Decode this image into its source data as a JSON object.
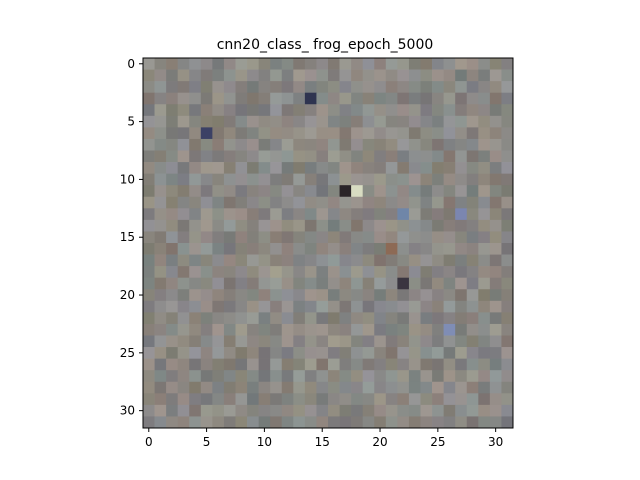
{
  "chart_data": {
    "type": "heatmap",
    "title": "cnn20_class_ frog_epoch_5000",
    "xlabel": "",
    "ylabel": "",
    "grid": false,
    "image_size": [
      32,
      32
    ],
    "xlim": [
      -0.5,
      31.5
    ],
    "ylim": [
      31.5,
      -0.5
    ],
    "x_ticks": [
      0,
      5,
      10,
      15,
      20,
      25,
      30
    ],
    "y_ticks": [
      0,
      5,
      10,
      15,
      20,
      25,
      30
    ],
    "base_color": "#8a8884",
    "notable_pixels": [
      {
        "x": 14,
        "y": 3,
        "color": "#2f3450"
      },
      {
        "x": 5,
        "y": 6,
        "color": "#3c4165"
      },
      {
        "x": 17,
        "y": 11,
        "color": "#2b2528"
      },
      {
        "x": 18,
        "y": 11,
        "color": "#d8dcc2"
      },
      {
        "x": 22,
        "y": 13,
        "color": "#6f86a8"
      },
      {
        "x": 22,
        "y": 19,
        "color": "#3a3540"
      },
      {
        "x": 27,
        "y": 13,
        "color": "#7b86b0"
      },
      {
        "x": 26,
        "y": 23,
        "color": "#7f8db5"
      },
      {
        "x": 21,
        "y": 16,
        "color": "#8d6a55"
      },
      {
        "x": 11,
        "y": 18,
        "color": "#a3a08e"
      }
    ]
  }
}
